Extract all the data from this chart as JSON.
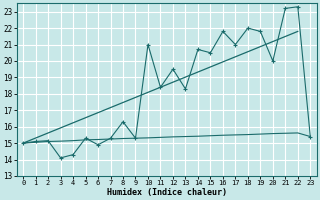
{
  "xlabel": "Humidex (Indice chaleur)",
  "bg_color": "#c8e8e8",
  "grid_color": "#ffffff",
  "line_color": "#1a6b6b",
  "xlim": [
    -0.5,
    23.5
  ],
  "ylim": [
    13,
    23.5
  ],
  "yticks": [
    13,
    14,
    15,
    16,
    17,
    18,
    19,
    20,
    21,
    22,
    23
  ],
  "xticks": [
    0,
    1,
    2,
    3,
    4,
    5,
    6,
    7,
    8,
    9,
    10,
    11,
    12,
    13,
    14,
    15,
    16,
    17,
    18,
    19,
    20,
    21,
    22,
    23
  ],
  "line1_x": [
    0,
    1,
    2,
    3,
    4,
    5,
    6,
    7,
    8,
    9,
    10,
    11,
    12,
    13,
    14,
    15,
    16,
    17,
    18,
    19,
    20,
    21,
    22,
    23
  ],
  "line1_y": [
    15.0,
    15.1,
    15.15,
    14.1,
    14.3,
    15.3,
    14.9,
    15.3,
    16.3,
    15.3,
    21.0,
    18.4,
    19.5,
    18.3,
    20.7,
    20.5,
    21.8,
    21.0,
    22.0,
    21.8,
    20.0,
    23.2,
    23.3,
    15.4
  ],
  "line2_x": [
    0,
    22
  ],
  "line2_y": [
    15.0,
    21.8
  ],
  "line3_x": [
    0,
    1,
    2,
    3,
    4,
    5,
    6,
    7,
    8,
    9,
    10,
    11,
    12,
    13,
    14,
    15,
    16,
    17,
    18,
    19,
    20,
    21,
    22,
    23
  ],
  "line3_y": [
    15.0,
    15.05,
    15.1,
    15.12,
    15.15,
    15.2,
    15.22,
    15.25,
    15.28,
    15.3,
    15.32,
    15.35,
    15.38,
    15.4,
    15.42,
    15.45,
    15.48,
    15.5,
    15.52,
    15.55,
    15.58,
    15.6,
    15.62,
    15.4
  ],
  "font_family": "monospace"
}
